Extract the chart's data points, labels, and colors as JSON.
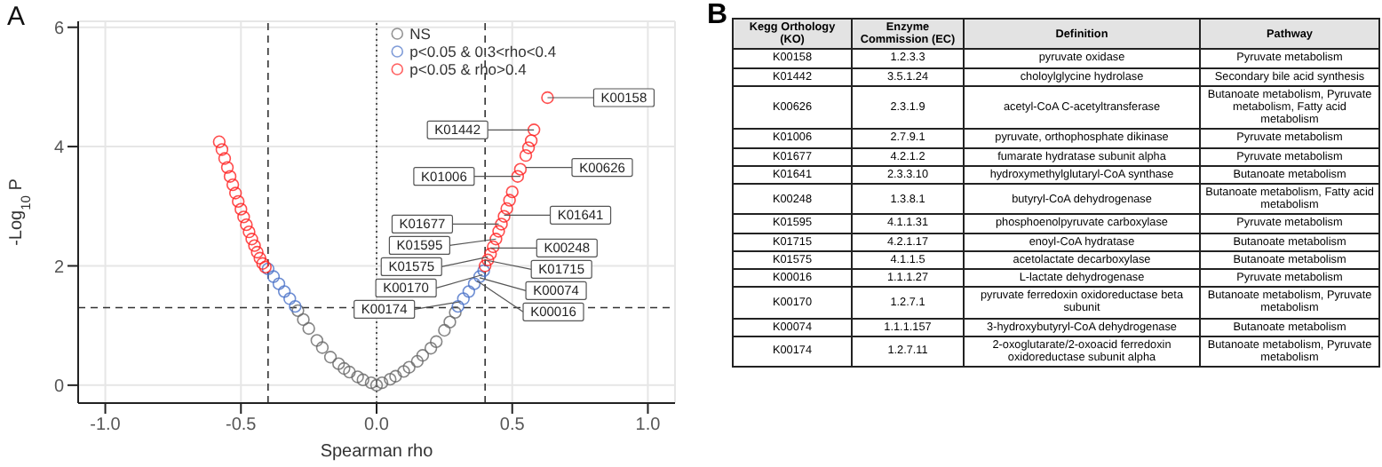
{
  "chart_data": [
    {
      "type": "scatter",
      "title": "A",
      "xlabel": "Spearman rho",
      "ylabel": "-Log$_{10}$ P",
      "xlim": [
        -1.1,
        1.1
      ],
      "xticks": [
        {
          "value": -1,
          "label": "-1.0"
        },
        {
          "value": -0.5,
          "label": "-0.5"
        },
        {
          "value": 0,
          "label": "0.0"
        },
        {
          "value": 0.5,
          "label": "0.5"
        },
        {
          "value": 1,
          "label": "1.0"
        }
      ],
      "ylim": [
        -0.3,
        6.1
      ],
      "yticks": [
        0,
        2,
        4,
        6
      ],
      "grid": true,
      "legend": "top right",
      "marker": "circle",
      "series": [
        {
          "name": "NS",
          "color": "#666666",
          "x": [
            -0.29,
            -0.27,
            -0.25,
            -0.22,
            -0.2,
            -0.17,
            -0.14,
            -0.12,
            -0.1,
            -0.07,
            -0.05,
            -0.02,
            0,
            0.02,
            0.05,
            0.07,
            0.1,
            0.12,
            0.15,
            0.17,
            0.2,
            0.22,
            0.25,
            0.27,
            0.29
          ],
          "values": [
            1.25,
            1.1,
            0.95,
            0.75,
            0.63,
            0.47,
            0.36,
            0.28,
            0.22,
            0.14,
            0.09,
            0.04,
            0,
            0.04,
            0.1,
            0.15,
            0.23,
            0.3,
            0.4,
            0.5,
            0.62,
            0.73,
            0.92,
            1.06,
            1.22
          ]
        },
        {
          "name": "p<0.05 & 0.3<rho<0.4",
          "color": "#4a72c8",
          "x": [
            -0.4,
            -0.38,
            -0.36,
            -0.34,
            -0.32,
            -0.3,
            0.3,
            0.32,
            0.34,
            0.36,
            0.38,
            0.395
          ],
          "values": [
            1.95,
            1.82,
            1.7,
            1.57,
            1.45,
            1.32,
            1.32,
            1.45,
            1.57,
            1.7,
            1.82,
            1.92
          ]
        },
        {
          "name": "p<0.05 & rho>0.4",
          "color": "#ff2020",
          "x": [
            -0.58,
            -0.57,
            -0.56,
            -0.55,
            -0.54,
            -0.53,
            -0.52,
            -0.51,
            -0.5,
            -0.49,
            -0.48,
            -0.47,
            -0.46,
            -0.45,
            -0.44,
            -0.43,
            -0.42,
            -0.41,
            0.4,
            0.41,
            0.42,
            0.43,
            0.44,
            0.45,
            0.46,
            0.47,
            0.48,
            0.49,
            0.5,
            0.52,
            0.53,
            0.55,
            0.56,
            0.57,
            0.58,
            0.63
          ],
          "values": [
            4.08,
            3.95,
            3.8,
            3.65,
            3.5,
            3.36,
            3.22,
            3.08,
            2.95,
            2.82,
            2.69,
            2.57,
            2.45,
            2.34,
            2.23,
            2.13,
            2.04,
            1.98,
            2.0,
            2.1,
            2.2,
            2.32,
            2.45,
            2.58,
            2.7,
            2.83,
            2.96,
            3.1,
            3.24,
            3.5,
            3.62,
            3.85,
            3.98,
            4.1,
            4.28,
            4.82
          ]
        }
      ],
      "ref_lines": [
        {
          "axis": "x",
          "value": -0.4,
          "line_style": "dashed"
        },
        {
          "axis": "x",
          "value": 0.4,
          "line_style": "dashed"
        },
        {
          "axis": "x",
          "value": 0,
          "line_style": "dotted"
        },
        {
          "axis": "y",
          "value": 1.3,
          "line_style": "dashed"
        }
      ],
      "annotations": [
        {
          "text": "K00158",
          "x": 0.63,
          "y": 4.82
        },
        {
          "text": "K01442",
          "x": 0.58,
          "y": 4.28
        },
        {
          "text": "K00626",
          "x": 0.55,
          "y": 3.65
        },
        {
          "text": "K01006",
          "x": 0.53,
          "y": 3.5
        },
        {
          "text": "K01641",
          "x": 0.47,
          "y": 2.85
        },
        {
          "text": "K01595",
          "x": 0.44,
          "y": 2.45
        },
        {
          "text": "K00248",
          "x": 0.42,
          "y": 2.3
        },
        {
          "text": "K01677",
          "x": 0.45,
          "y": 2.7
        },
        {
          "text": "K01715",
          "x": 0.4,
          "y": 2.1
        },
        {
          "text": "K01575",
          "x": 0.41,
          "y": 2.15
        },
        {
          "text": "K00016",
          "x": 0.37,
          "y": 1.75
        },
        {
          "text": "K00170",
          "x": 0.39,
          "y": 1.85
        },
        {
          "text": "K00074",
          "x": 0.38,
          "y": 1.8
        },
        {
          "text": "K00174",
          "x": 0.31,
          "y": 1.4
        }
      ]
    },
    {
      "type": "other",
      "title": "B",
      "categories": [
        "Kegg Orthology (KO)",
        "Enzyme Commission (EC)",
        "Definition",
        "Pathway"
      ],
      "annotations": [
        "K00158",
        "1.2.3.3",
        "pyruvate oxidase",
        "Pyruvate metabolism",
        "K01442",
        "3.5.1.24",
        "choloylglycine hydrolase",
        "Secondary bile acid synthesis",
        "K00626",
        "2.3.1.9",
        "acetyl-CoA C-acetyltransferase",
        "Butanoate metabolism, Pyruvate metabolism, Fatty acid metabolism",
        "K01006",
        "2.7.9.1",
        "pyruvate, orthophosphate dikinase",
        "Pyruvate metabolism",
        "K01677",
        "4.2.1.2",
        "fumarate hydratase subunit alpha",
        "Pyruvate metabolism",
        "K01641",
        "2.3.3.10",
        "hydroxymethylglutaryl-CoA synthase",
        "Butanoate metabolism",
        "K00248",
        "1.3.8.1",
        "butyryl-CoA dehydrogenase",
        "Butanoate metabolism, Fatty acid metabolism",
        "K01595",
        "4.1.1.31",
        "phosphoenolpyruvate carboxylase",
        "Pyruvate metabolism",
        "K01715",
        "4.2.1.17",
        "enoyl-CoA hydratase",
        "Butanoate metabolism",
        "K01575",
        "4.1.1.5",
        "acetolactate decarboxylase",
        "Butanoate metabolism",
        "K00016",
        "1.1.1.27",
        "L-lactate dehydrogenase",
        "Pyruvate metabolism",
        "K00170",
        "1.2.7.1",
        "pyruvate ferredoxin oxidoreductase beta subunit",
        "Butanoate metabolism, Pyruvate metabolism",
        "K00074",
        "1.1.1.157",
        "3-hydroxybutyryl-CoA dehydrogenase",
        "Butanoate metabolism",
        "K00174",
        "1.2.7.11",
        "2-oxoglutarate/2-oxoacid ferredoxin oxidoreductase subunit alpha",
        "Butanoate metabolism, Pyruvate metabolism"
      ]
    }
  ]
}
